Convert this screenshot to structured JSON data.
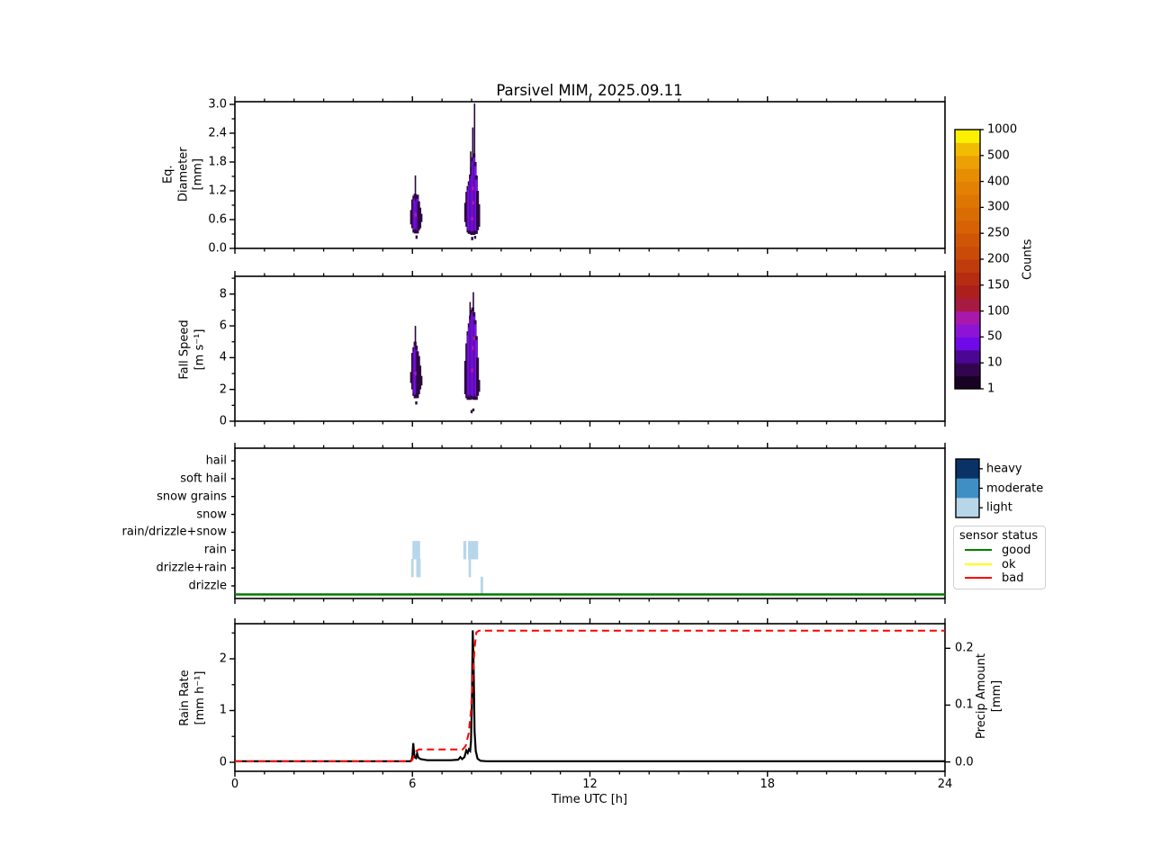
{
  "title": "Parsivel MIM, 2025.09.11",
  "xlabel": "Time UTC [h]",
  "chart_data": [
    {
      "id": "eq_diameter",
      "type": "heatmap",
      "ylabel_lines": [
        "Eq.",
        "Diameter",
        "[mm]"
      ],
      "ylim": [
        0,
        3.056
      ],
      "xlim": [
        0,
        24
      ],
      "yticks": {
        "values": [
          0,
          0.6,
          1.2,
          1.8,
          2.4,
          3.0
        ],
        "labels": [
          "0.0",
          "0.6",
          "1.2",
          "1.8",
          "2.4",
          "3.0"
        ]
      },
      "yminor": [
        0.3,
        0.9,
        1.5,
        2.1,
        2.7
      ],
      "grid": false,
      "events": [
        {
          "name": "shower-1",
          "columns": [
            [
              5.97,
              0.5,
              0.8,
              "dark"
            ],
            [
              6.01,
              0.42,
              1.02,
              "dark"
            ],
            [
              6.05,
              0.35,
              1.08,
              "bright"
            ],
            [
              6.09,
              0.33,
              1.12,
              "bright"
            ],
            [
              6.13,
              0.36,
              1.06,
              "bright"
            ],
            [
              6.17,
              0.33,
              1.1,
              "bright"
            ],
            [
              6.21,
              0.38,
              0.98,
              "dark"
            ],
            [
              6.25,
              0.42,
              0.85,
              "dark"
            ],
            [
              6.29,
              0.55,
              0.72,
              "dark"
            ]
          ]
        },
        {
          "name": "shower-2",
          "columns": [
            [
              7.8,
              0.55,
              0.95,
              "dark"
            ],
            [
              7.84,
              0.45,
              1.18,
              "dark"
            ],
            [
              7.88,
              0.35,
              1.28,
              "bright"
            ],
            [
              7.92,
              0.32,
              1.38,
              "bright"
            ],
            [
              7.96,
              0.33,
              1.52,
              "bright"
            ],
            [
              8.0,
              0.3,
              1.68,
              "bright"
            ],
            [
              8.04,
              0.32,
              1.88,
              "bright"
            ],
            [
              8.08,
              0.3,
              1.96,
              "bright"
            ],
            [
              8.12,
              0.33,
              1.78,
              "bright"
            ],
            [
              8.16,
              0.32,
              1.5,
              "bright"
            ],
            [
              8.2,
              0.38,
              1.2,
              "dark"
            ],
            [
              8.24,
              0.45,
              0.92,
              "dark"
            ]
          ]
        }
      ],
      "spikes": [
        [
          6.1,
          1.02,
          1.52
        ],
        [
          7.97,
          1.52,
          2.02
        ],
        [
          8.04,
          1.88,
          2.52
        ],
        [
          8.1,
          1.96,
          3.02
        ]
      ],
      "dark_specks": [
        [
          6.14,
          0.2,
          0.27
        ],
        [
          8.02,
          0.17,
          0.24
        ],
        [
          8.12,
          0.2,
          0.26
        ]
      ],
      "magenta_specks": [
        [
          8.02,
          0.62
        ],
        [
          8.06,
          0.95
        ],
        [
          8.04,
          1.25
        ],
        [
          6.1,
          0.7
        ]
      ]
    },
    {
      "id": "fall_speed",
      "type": "heatmap",
      "ylabel_lines": [
        "Fall Speed",
        "[m s⁻¹]"
      ],
      "ylim": [
        0,
        9.12
      ],
      "xlim": [
        0,
        24
      ],
      "yticks": {
        "values": [
          0,
          2,
          4,
          6,
          8
        ],
        "labels": [
          "0",
          "2",
          "4",
          "6",
          "8"
        ]
      },
      "yminor": [
        1,
        3,
        5,
        7,
        9
      ],
      "grid": false,
      "events": [
        {
          "name": "shower-1",
          "columns": [
            [
              5.97,
              2.4,
              3.1,
              "dark"
            ],
            [
              6.01,
              2.0,
              4.3,
              "dark"
            ],
            [
              6.05,
              1.65,
              4.6,
              "bright"
            ],
            [
              6.09,
              1.5,
              4.95,
              "bright"
            ],
            [
              6.13,
              1.55,
              4.7,
              "bright"
            ],
            [
              6.17,
              1.45,
              4.4,
              "dark"
            ],
            [
              6.21,
              1.7,
              4.1,
              "dark"
            ],
            [
              6.25,
              2.0,
              3.5,
              "dark"
            ],
            [
              6.29,
              2.25,
              2.85,
              "dark"
            ]
          ]
        },
        {
          "name": "shower-2",
          "columns": [
            [
              7.8,
              1.7,
              3.8,
              "dark"
            ],
            [
              7.84,
              1.45,
              4.9,
              "dark"
            ],
            [
              7.88,
              1.4,
              5.6,
              "bright"
            ],
            [
              7.92,
              1.5,
              6.1,
              "bright"
            ],
            [
              7.96,
              1.4,
              6.6,
              "bright"
            ],
            [
              8.0,
              1.5,
              6.95,
              "bright"
            ],
            [
              8.04,
              1.45,
              7.1,
              "bright"
            ],
            [
              8.08,
              1.4,
              6.8,
              "bright"
            ],
            [
              8.12,
              1.5,
              6.3,
              "bright"
            ],
            [
              8.16,
              1.4,
              5.3,
              "bright"
            ],
            [
              8.2,
              1.6,
              4.0,
              "dark"
            ],
            [
              8.24,
              1.85,
              2.6,
              "dark"
            ]
          ]
        }
      ],
      "spikes": [
        [
          6.1,
          4.95,
          6.0
        ],
        [
          7.95,
          6.6,
          7.5
        ],
        [
          8.06,
          7.1,
          8.12
        ]
      ],
      "dark_specks": [
        [
          6.13,
          1.05,
          1.25
        ],
        [
          8.0,
          0.5,
          0.7
        ],
        [
          8.06,
          0.62,
          0.8
        ]
      ],
      "magenta_specks": [
        [
          8.02,
          3.2
        ],
        [
          8.04,
          4.6
        ],
        [
          8.08,
          5.2
        ],
        [
          6.1,
          3.0
        ]
      ]
    },
    {
      "id": "precip_type",
      "type": "categorical-events",
      "categories_top_to_bottom": [
        "hail",
        "soft hail",
        "snow grains",
        "snow",
        "rain/drizzle+snow",
        "rain",
        "drizzle+rain",
        "drizzle"
      ],
      "xlim": [
        0,
        24
      ],
      "marks": [
        {
          "t0": 6.0,
          "t1": 6.26,
          "category": "rain",
          "intensity": "light"
        },
        {
          "t0": 5.96,
          "t1": 6.04,
          "category": "drizzle+rain",
          "intensity": "light"
        },
        {
          "t0": 6.13,
          "t1": 6.28,
          "category": "drizzle+rain",
          "intensity": "light"
        },
        {
          "t0": 7.72,
          "t1": 7.82,
          "category": "rain",
          "intensity": "light"
        },
        {
          "t0": 7.88,
          "t1": 8.22,
          "category": "rain",
          "intensity": "light"
        },
        {
          "t0": 7.9,
          "t1": 7.98,
          "category": "drizzle+rain",
          "intensity": "light"
        },
        {
          "t0": 8.3,
          "t1": 8.39,
          "category": "drizzle",
          "intensity": "light"
        }
      ],
      "sensor_status_line": {
        "status": "good",
        "color": "#007c00",
        "t0": 0,
        "t1": 24
      }
    },
    {
      "id": "rain_rate_precip_amount",
      "type": "line",
      "ylabel_lines": [
        "Rain Rate",
        "[mm h⁻¹]"
      ],
      "ylabel_right_lines": [
        "Precip Amount",
        "[mm]"
      ],
      "ylim_left": [
        -0.174,
        2.678
      ],
      "ylim_right": [
        -0.0165,
        0.2433
      ],
      "xlim": [
        0,
        24
      ],
      "yticks_left": {
        "values": [
          0,
          1,
          2
        ],
        "labels": [
          "0",
          "1",
          "2"
        ]
      },
      "yminor_left": [
        0.5,
        1.5,
        2.5
      ],
      "yticks_right": {
        "values": [
          0,
          0.1,
          0.2
        ],
        "labels": [
          "0.0",
          "0.1",
          "0.2"
        ]
      },
      "xticks": {
        "values": [
          0,
          6,
          12,
          18,
          24
        ],
        "labels": [
          "0",
          "6",
          "12",
          "18",
          "24"
        ]
      },
      "series": [
        {
          "name": "rain_rate",
          "axis": "left",
          "color": "#000000",
          "style": "solid",
          "points": [
            [
              0,
              0.02
            ],
            [
              5.92,
              0.02
            ],
            [
              5.97,
              0.04
            ],
            [
              6.0,
              0.12
            ],
            [
              6.03,
              0.37
            ],
            [
              6.05,
              0.22
            ],
            [
              6.07,
              0.1
            ],
            [
              6.12,
              0.08
            ],
            [
              6.16,
              0.17
            ],
            [
              6.2,
              0.09
            ],
            [
              6.28,
              0.06
            ],
            [
              6.5,
              0.04
            ],
            [
              7.3,
              0.04
            ],
            [
              7.55,
              0.05
            ],
            [
              7.62,
              0.1
            ],
            [
              7.68,
              0.06
            ],
            [
              7.76,
              0.1
            ],
            [
              7.82,
              0.23
            ],
            [
              7.87,
              0.18
            ],
            [
              7.91,
              0.25
            ],
            [
              7.95,
              0.22
            ],
            [
              7.98,
              0.4
            ],
            [
              8.01,
              1.1
            ],
            [
              8.04,
              2.55
            ],
            [
              8.07,
              1.8
            ],
            [
              8.1,
              0.6
            ],
            [
              8.14,
              0.22
            ],
            [
              8.2,
              0.07
            ],
            [
              8.3,
              0.03
            ],
            [
              8.5,
              0.02
            ],
            [
              24,
              0.02
            ]
          ]
        },
        {
          "name": "precip_amount",
          "axis": "right",
          "color": "#ff0000",
          "style": "dashed",
          "points": [
            [
              0,
              0.001
            ],
            [
              5.95,
              0.001
            ],
            [
              6.0,
              0.004
            ],
            [
              6.05,
              0.012
            ],
            [
              6.12,
              0.019
            ],
            [
              6.22,
              0.022
            ],
            [
              7.7,
              0.022
            ],
            [
              7.8,
              0.028
            ],
            [
              7.9,
              0.05
            ],
            [
              7.98,
              0.09
            ],
            [
              8.04,
              0.15
            ],
            [
              8.1,
              0.2
            ],
            [
              8.16,
              0.228
            ],
            [
              8.25,
              0.231
            ],
            [
              24,
              0.231
            ]
          ]
        }
      ]
    }
  ],
  "heatmap_colors": {
    "bright": "#7a10ee",
    "dark": "#2c0840",
    "magenta": "#b516a0"
  },
  "counts_colorbar": {
    "label": "Counts",
    "tick_labels_bottom_to_top": [
      "1",
      "10",
      "50",
      "100",
      "150",
      "200",
      "250",
      "300",
      "400",
      "500",
      "1000"
    ],
    "segment_colors_bottom_to_top": [
      "#180323",
      "#32064e",
      "#4c0694",
      "#7009e8",
      "#8d13d6",
      "#a818ab",
      "#a81a42",
      "#ad1f1d",
      "#b62c10",
      "#c13c0c",
      "#ca4a08",
      "#d05606",
      "#d66205",
      "#da6c04",
      "#de7604",
      "#e28104",
      "#e68d04",
      "#eba004",
      "#f2bc03",
      "#fbf000"
    ]
  },
  "intensity_colorbar": {
    "entries_top_to_bottom": [
      {
        "label": "heavy",
        "color": "#0a3266"
      },
      {
        "label": "moderate",
        "color": "#3f8fc5"
      },
      {
        "label": "light",
        "color": "#b7d6ea"
      }
    ]
  },
  "sensor_legend": {
    "title": "sensor status",
    "entries": [
      {
        "label": "good",
        "color": "#008000"
      },
      {
        "label": "ok",
        "color": "#ffff00"
      },
      {
        "label": "bad",
        "color": "#ff0000"
      }
    ]
  }
}
